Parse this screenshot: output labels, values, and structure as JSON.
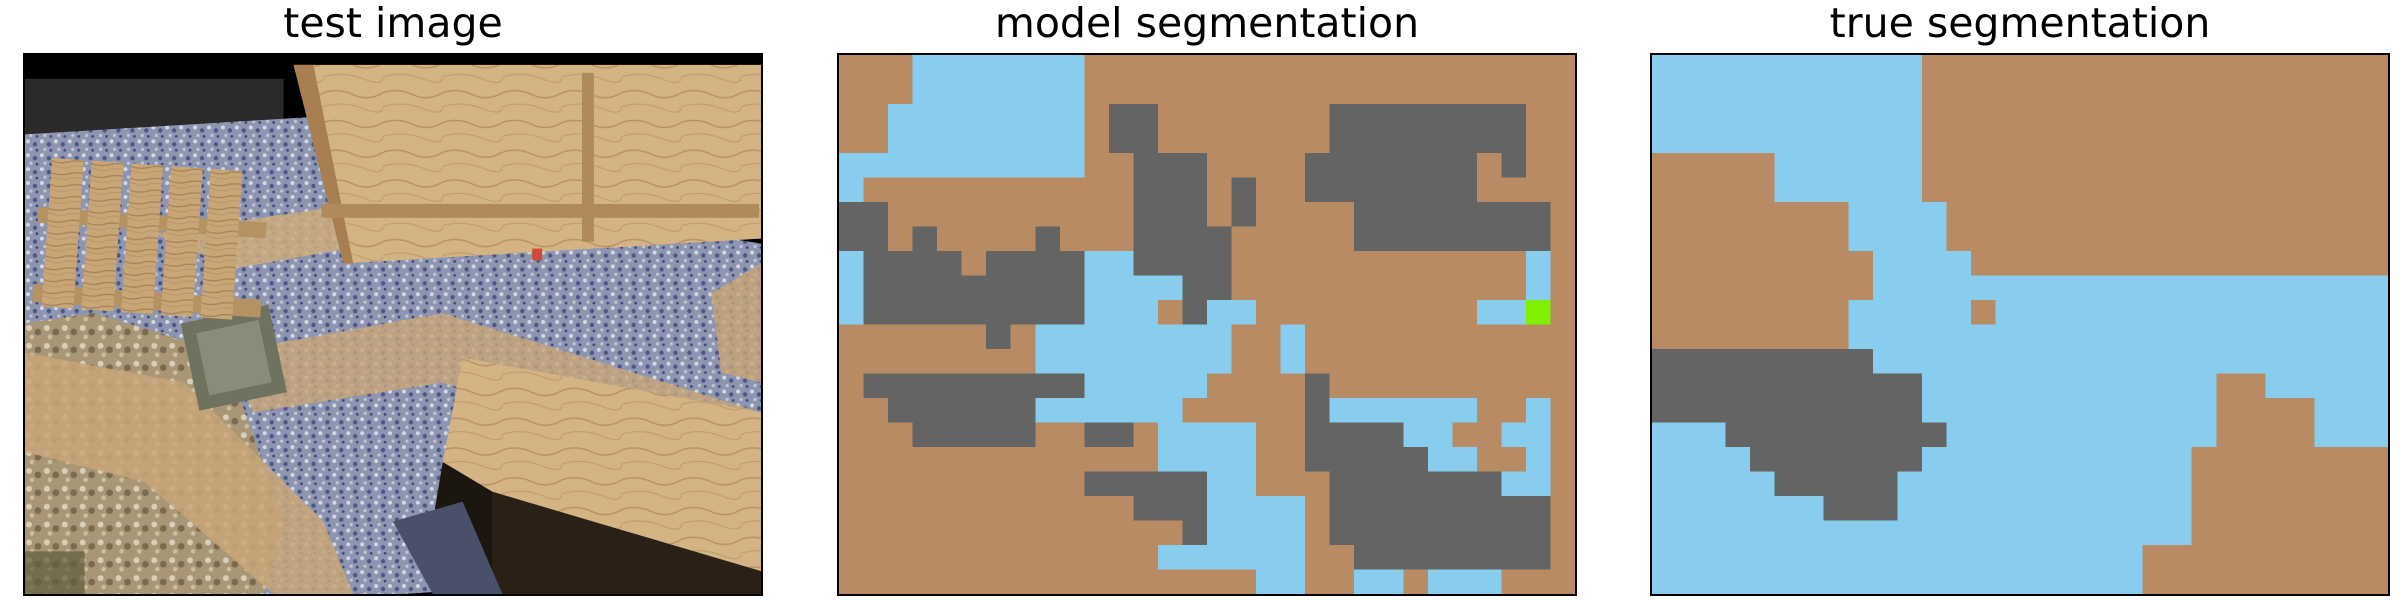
{
  "panels": [
    {
      "title": "test image"
    },
    {
      "title": "model segmentation"
    },
    {
      "title": "true segmentation"
    }
  ],
  "palette": {
    "brown": "#b98b64",
    "blue": "#89cdee",
    "gray": "#646464",
    "green": "#7ff000",
    "photo_background": "#000000"
  }
}
